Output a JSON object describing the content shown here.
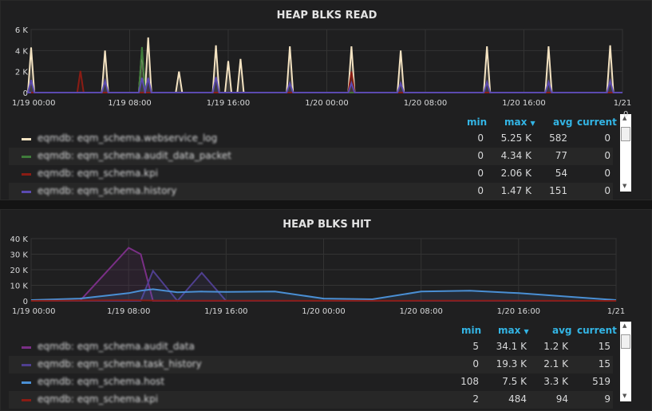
{
  "panels": [
    {
      "title": "HEAP BLKS READ",
      "y_ticks": [
        "6 K",
        "4 K",
        "2 K",
        "0"
      ],
      "x_ticks": [
        "1/19 00:00",
        "1/19 08:00",
        "1/19 16:00",
        "1/20 00:00",
        "1/20 08:00",
        "1/20 16:00",
        "1/21"
      ],
      "scroll_edge_label": "0",
      "legend_headers": {
        "min": "min",
        "max": "max",
        "avg": "avg",
        "current": "current"
      },
      "rows": [
        {
          "name": "eqmdb: eqm_schema.webservice_log",
          "min": "0",
          "max": "5.25 K",
          "avg": "582",
          "current": "0",
          "color": "#f4e3c2"
        },
        {
          "name": "eqmdb: eqm_schema.audit_data_packet",
          "min": "0",
          "max": "4.34 K",
          "avg": "77",
          "current": "0",
          "color": "#3f7b3a"
        },
        {
          "name": "eqmdb: eqm_schema.kpi",
          "min": "0",
          "max": "2.06 K",
          "avg": "54",
          "current": "0",
          "color": "#8a1c14"
        },
        {
          "name": "eqmdb: eqm_schema.history",
          "min": "0",
          "max": "1.47 K",
          "avg": "151",
          "current": "0",
          "color": "#5b4ab0"
        }
      ]
    },
    {
      "title": "HEAP BLKS HIT",
      "y_ticks": [
        "40 K",
        "30 K",
        "20 K",
        "10 K",
        "0"
      ],
      "x_ticks": [
        "1/19 00:00",
        "1/19 08:00",
        "1/19 16:00",
        "1/20 00:00",
        "1/20 08:00",
        "1/20 16:00",
        "1/21"
      ],
      "legend_headers": {
        "min": "min",
        "max": "max",
        "avg": "avg",
        "current": "current"
      },
      "rows": [
        {
          "name": "eqmdb: eqm_schema.audit_data",
          "min": "5",
          "max": "34.1 K",
          "avg": "1.2 K",
          "current": "15",
          "color": "#7a2f86"
        },
        {
          "name": "eqmdb: eqm_schema.task_history",
          "min": "0",
          "max": "19.3 K",
          "avg": "2.1 K",
          "current": "15",
          "color": "#4f3f8f"
        },
        {
          "name": "eqmdb: eqm_schema.host",
          "min": "108",
          "max": "7.5 K",
          "avg": "3.3 K",
          "current": "519",
          "color": "#4a8fd4"
        },
        {
          "name": "eqmdb: eqm_schema.kpi",
          "min": "2",
          "max": "484",
          "avg": "94",
          "current": "9",
          "color": "#8a1c14"
        }
      ]
    }
  ],
  "chart_data": [
    {
      "type": "line",
      "title": "HEAP BLKS READ",
      "x": [
        "1/19 00:00",
        "1/19 04:00",
        "1/19 06:00",
        "1/19 09:00",
        "1/19 09:30",
        "1/19 12:00",
        "1/19 15:00",
        "1/19 16:00",
        "1/19 17:00",
        "1/19 21:00",
        "1/20 02:00",
        "1/20 06:00",
        "1/20 13:00",
        "1/20 18:00",
        "1/20 23:00"
      ],
      "ylim": [
        0,
        6000
      ],
      "series": [
        {
          "name": "eqmdb: eqm_schema.webservice_log",
          "values": [
            4300,
            0,
            4000,
            4000,
            5250,
            2000,
            4500,
            3000,
            3200,
            4400,
            4400,
            4000,
            4400,
            4400,
            4500
          ]
        },
        {
          "name": "eqmdb: eqm_schema.audit_data_packet",
          "values": [
            0,
            0,
            0,
            4340,
            0,
            0,
            0,
            0,
            0,
            0,
            0,
            0,
            0,
            0,
            0
          ]
        },
        {
          "name": "eqmdb: eqm_schema.kpi",
          "values": [
            0,
            2060,
            0,
            0,
            0,
            0,
            0,
            0,
            0,
            0,
            2000,
            0,
            0,
            0,
            0
          ]
        },
        {
          "name": "eqmdb: eqm_schema.history",
          "values": [
            1200,
            0,
            1100,
            1400,
            1400,
            0,
            1470,
            0,
            0,
            900,
            900,
            900,
            1000,
            1000,
            1100
          ]
        }
      ]
    },
    {
      "type": "line",
      "title": "HEAP BLKS HIT",
      "x": [
        "1/19 00:00",
        "1/19 04:00",
        "1/19 08:00",
        "1/19 09:00",
        "1/19 10:00",
        "1/19 12:00",
        "1/19 14:00",
        "1/19 16:00",
        "1/19 20:00",
        "1/20 00:00",
        "1/20 04:00",
        "1/20 08:00",
        "1/20 12:00",
        "1/20 16:00",
        "1/21 00:00"
      ],
      "ylim": [
        0,
        40000
      ],
      "series": [
        {
          "name": "eqmdb: eqm_schema.audit_data",
          "values": [
            0,
            0,
            34100,
            30000,
            0,
            0,
            0,
            0,
            0,
            0,
            0,
            0,
            0,
            0,
            0
          ]
        },
        {
          "name": "eqmdb: eqm_schema.task_history",
          "values": [
            0,
            0,
            0,
            0,
            19300,
            0,
            18000,
            0,
            0,
            0,
            0,
            0,
            0,
            0,
            0
          ]
        },
        {
          "name": "eqmdb: eqm_schema.host",
          "values": [
            500,
            1500,
            5000,
            6500,
            7500,
            5500,
            6000,
            5800,
            6000,
            1500,
            1000,
            6000,
            6500,
            5000,
            500
          ]
        },
        {
          "name": "eqmdb: eqm_schema.kpi",
          "values": [
            0,
            200,
            484,
            300,
            200,
            100,
            100,
            100,
            100,
            50,
            50,
            100,
            100,
            100,
            9
          ]
        }
      ]
    }
  ]
}
